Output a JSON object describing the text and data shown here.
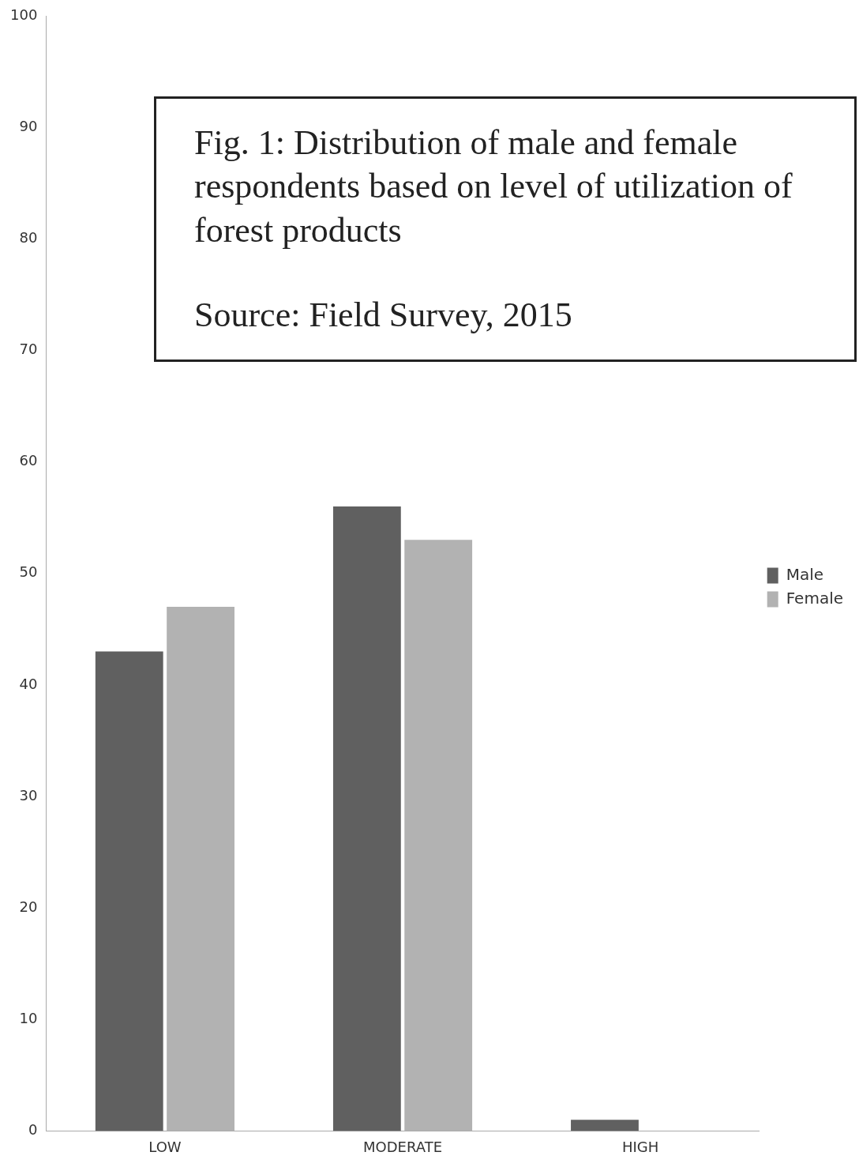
{
  "chart_data": {
    "type": "bar",
    "title": "Fig. 1: Distribution of male and female respondents based on level of utilization of forest products",
    "annotations": [
      "Source: Field Survey, 2015"
    ],
    "categories": [
      "LOW",
      "MODERATE",
      "HIGH"
    ],
    "series": [
      {
        "name": "Male",
        "color": "#606060",
        "values": [
          43,
          56,
          1
        ]
      },
      {
        "name": "Female",
        "color": "#b2b2b2",
        "values": [
          47,
          53,
          0
        ]
      }
    ],
    "ylim": [
      0,
      100
    ],
    "yticks": [
      0,
      10,
      20,
      30,
      40,
      50,
      60,
      70,
      80,
      90,
      100
    ],
    "grid": false,
    "legend": "right"
  }
}
